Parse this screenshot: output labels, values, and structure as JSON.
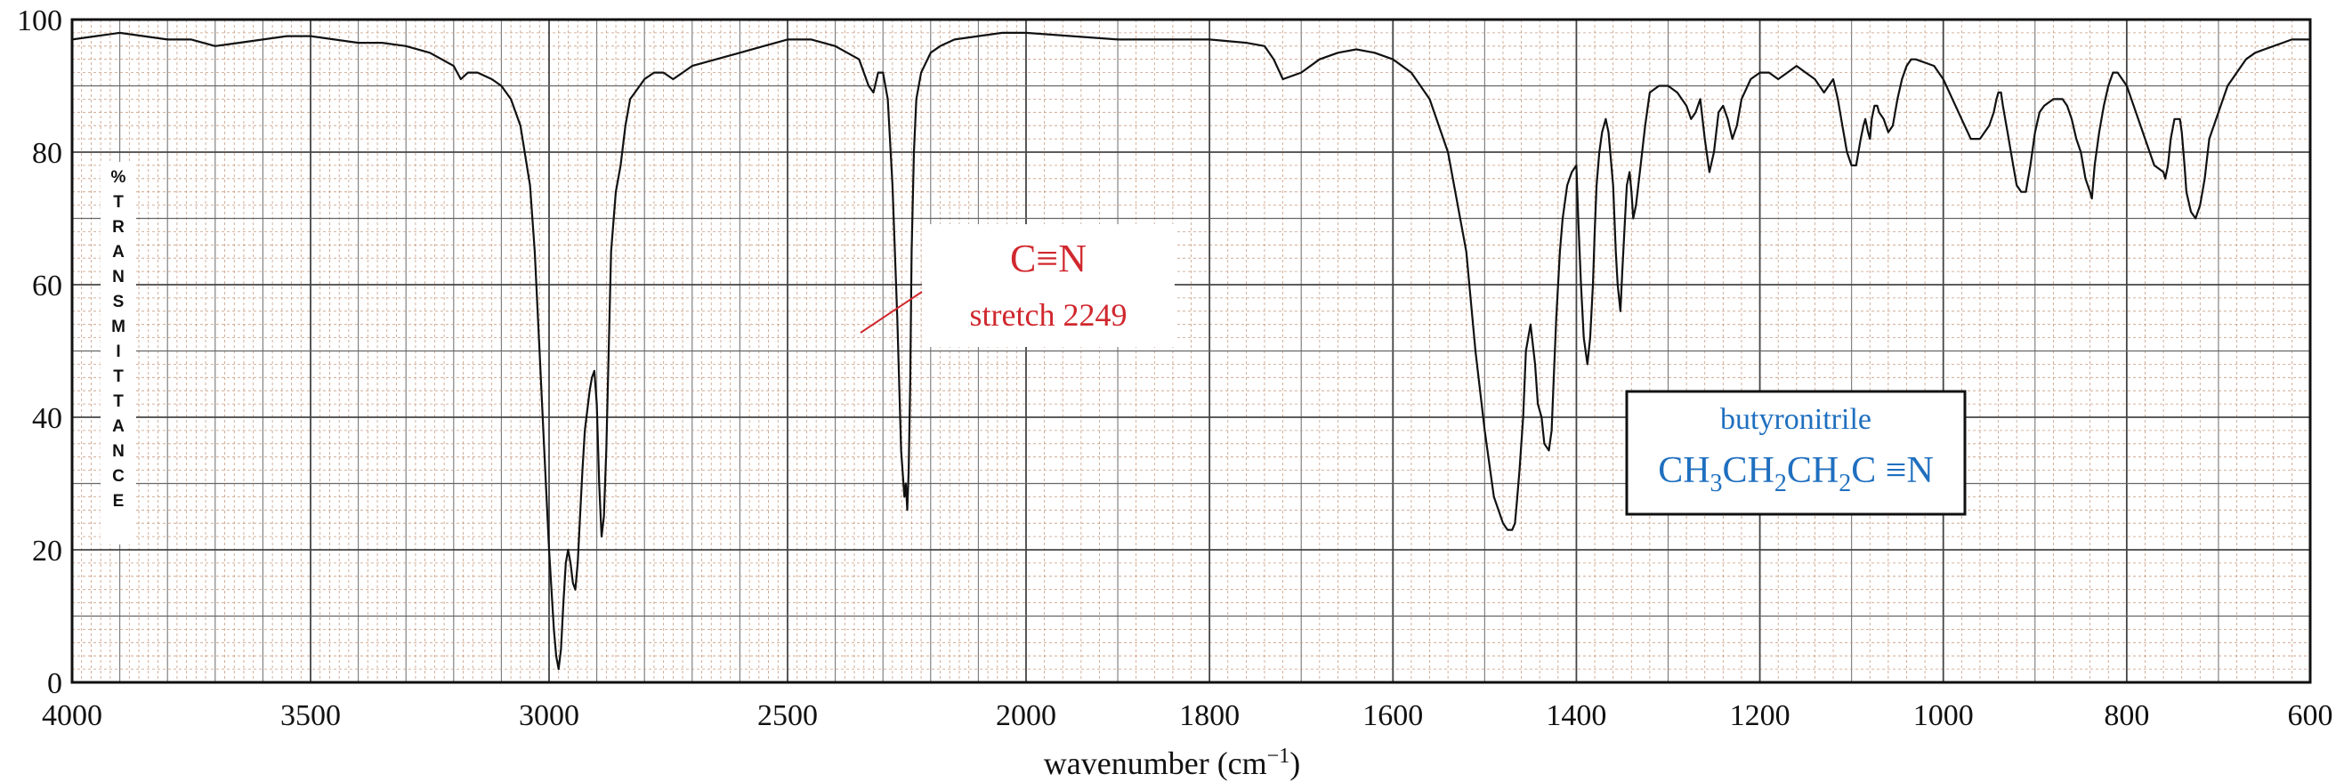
{
  "chart_data": {
    "type": "line",
    "title": "",
    "xlabel": "wavenumber (cm",
    "xlabel_sup": "−1",
    "xlabel_close": ")",
    "ylabel": "%TRANSMITTANCE",
    "ylim": [
      0,
      100
    ],
    "x_axis_reversed": true,
    "x_axis_scale_change_at": 2000,
    "xlim": [
      4000,
      600
    ],
    "x_ticks": [
      "4000",
      "3500",
      "3000",
      "2500",
      "2000",
      "1800",
      "1600",
      "1400",
      "1200",
      "1000",
      "800",
      "600"
    ],
    "y_ticks": [
      "0",
      "20",
      "40",
      "60",
      "80",
      "100"
    ],
    "grid": true,
    "colors": {
      "trace": "#111111",
      "grid_major": "#444444",
      "grid_minor": "#c89c80",
      "annotation_red": "#d0282e",
      "annotation_blue": "#1f6fbf"
    },
    "annotations": {
      "cn_label": "C≡N",
      "cn_stretch": "stretch 2249",
      "compound_name": "butyronitrile",
      "formula_parts": [
        "CH",
        "3",
        "CH",
        "2",
        "CH",
        "2",
        "C ≡N"
      ]
    },
    "series": [
      {
        "x": [
          4000,
          3950,
          3900,
          3850,
          3800,
          3750,
          3700,
          3650,
          3600,
          3550,
          3500,
          3450,
          3400,
          3350,
          3300,
          3250,
          3200,
          3185,
          3170,
          3150,
          3120,
          3100,
          3080,
          3060,
          3040,
          3030,
          3020,
          3010,
          3000,
          2990,
          2985,
          2980,
          2975,
          2970,
          2965,
          2960,
          2955,
          2950,
          2945,
          2940,
          2935,
          2930,
          2925,
          2920,
          2915,
          2910,
          2905,
          2900,
          2895,
          2890,
          2885,
          2880,
          2875,
          2870,
          2860,
          2850,
          2840,
          2830,
          2820,
          2800,
          2780,
          2760,
          2740,
          2720,
          2700,
          2650,
          2600,
          2550,
          2500,
          2450,
          2400,
          2350,
          2330,
          2320,
          2310,
          2300,
          2290,
          2280,
          2270,
          2262,
          2255,
          2252,
          2249,
          2246,
          2243,
          2240,
          2235,
          2230,
          2220,
          2200,
          2180,
          2150,
          2100,
          2050,
          2000,
          1950,
          1900,
          1850,
          1800,
          1760,
          1740,
          1730,
          1720,
          1700,
          1680,
          1660,
          1640,
          1620,
          1600,
          1580,
          1560,
          1540,
          1520,
          1510,
          1500,
          1490,
          1480,
          1475,
          1470,
          1467,
          1465,
          1462,
          1458,
          1455,
          1450,
          1445,
          1442,
          1438,
          1435,
          1430,
          1427,
          1425,
          1422,
          1418,
          1415,
          1410,
          1405,
          1400,
          1398,
          1395,
          1392,
          1388,
          1385,
          1382,
          1380,
          1378,
          1375,
          1372,
          1368,
          1365,
          1360,
          1357,
          1355,
          1352,
          1350,
          1347,
          1345,
          1342,
          1340,
          1338,
          1335,
          1330,
          1325,
          1320,
          1310,
          1300,
          1290,
          1280,
          1275,
          1270,
          1265,
          1260,
          1255,
          1250,
          1245,
          1240,
          1235,
          1230,
          1225,
          1220,
          1210,
          1200,
          1190,
          1180,
          1170,
          1160,
          1150,
          1140,
          1130,
          1125,
          1120,
          1115,
          1110,
          1105,
          1100,
          1095,
          1090,
          1087,
          1085,
          1082,
          1080,
          1078,
          1075,
          1072,
          1070,
          1065,
          1060,
          1055,
          1050,
          1045,
          1040,
          1035,
          1030,
          1020,
          1010,
          1000,
          990,
          980,
          970,
          960,
          950,
          945,
          942,
          940,
          937,
          935,
          930,
          925,
          920,
          915,
          910,
          905,
          900,
          895,
          890,
          880,
          870,
          865,
          860,
          855,
          850,
          845,
          840,
          838,
          835,
          830,
          825,
          820,
          815,
          810,
          800,
          790,
          780,
          770,
          760,
          758,
          755,
          752,
          748,
          745,
          742,
          740,
          737,
          735,
          730,
          725,
          720,
          715,
          710,
          700,
          690,
          680,
          670,
          660,
          650,
          640,
          630,
          620,
          610,
          600
        ],
        "y": [
          97,
          97.5,
          98,
          97.5,
          97,
          97,
          96,
          96.5,
          97,
          97.5,
          97.5,
          97,
          96.5,
          96.5,
          96,
          95,
          93,
          91,
          92,
          92,
          91,
          90,
          88,
          84,
          75,
          65,
          50,
          35,
          20,
          8,
          4,
          2,
          5,
          12,
          18,
          20,
          18,
          15,
          14,
          18,
          25,
          32,
          38,
          41,
          44,
          46,
          47,
          42,
          30,
          22,
          25,
          35,
          50,
          65,
          74,
          78,
          84,
          88,
          89,
          91,
          92,
          92,
          91,
          92,
          93,
          94,
          95,
          96,
          97,
          97,
          96,
          94,
          90,
          89,
          92,
          92,
          88,
          75,
          55,
          35,
          28,
          30,
          26,
          32,
          45,
          65,
          80,
          88,
          92,
          95,
          96,
          97,
          97.5,
          98,
          98,
          97.5,
          97,
          97,
          97,
          96.5,
          96,
          94,
          91,
          92,
          94,
          95,
          95.5,
          95,
          94,
          92,
          88,
          80,
          65,
          50,
          38,
          28,
          24,
          23,
          23,
          24,
          27,
          32,
          40,
          50,
          54,
          48,
          42,
          40,
          36,
          35,
          38,
          45,
          55,
          65,
          70,
          75,
          77,
          78,
          70,
          60,
          52,
          48,
          52,
          60,
          68,
          75,
          80,
          83,
          85,
          83,
          75,
          65,
          60,
          56,
          62,
          70,
          75,
          77,
          74,
          70,
          72,
          78,
          84,
          89,
          90,
          90,
          89,
          87,
          85,
          86,
          88,
          82,
          77,
          80,
          86,
          87,
          85,
          82,
          84,
          88,
          91,
          92,
          92,
          91,
          92,
          93,
          92,
          91,
          89,
          90,
          91,
          88,
          84,
          80,
          78,
          78,
          82,
          84,
          85,
          83,
          82,
          85,
          87,
          87,
          86,
          85,
          83,
          84,
          88,
          91,
          93,
          94,
          94,
          93.5,
          93,
          91,
          88,
          85,
          82,
          82,
          84,
          86,
          88,
          89,
          89,
          87,
          83,
          79,
          75,
          74,
          74,
          78,
          83,
          86,
          87,
          88,
          88,
          87,
          85,
          82,
          80,
          76,
          74,
          73,
          78,
          83,
          87,
          90,
          92,
          92,
          90,
          86,
          82,
          78,
          77,
          76,
          78,
          82,
          85,
          85,
          85,
          83,
          78,
          74,
          71,
          70,
          72,
          76,
          82,
          86,
          90,
          92,
          94,
          95,
          95.5,
          96,
          96.5,
          97,
          97,
          97
        ]
      }
    ]
  }
}
